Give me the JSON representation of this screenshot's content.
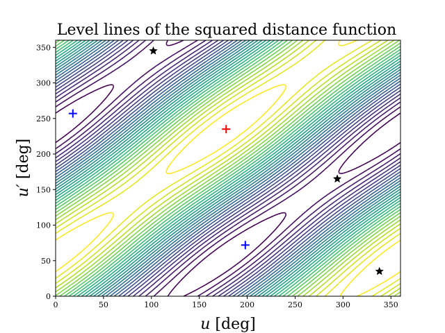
{
  "chart_data": {
    "type": "contour",
    "title": "Level lines of the squared distance function",
    "xlabel_main": "u",
    "xlabel_unit": " [deg]",
    "ylabel_main": "u′",
    "ylabel_unit": " [deg]",
    "xlim": [
      0,
      360
    ],
    "ylim": [
      0,
      360
    ],
    "xticks": [
      0,
      50,
      100,
      150,
      200,
      250,
      300,
      350
    ],
    "yticks": [
      0,
      50,
      100,
      150,
      200,
      250,
      300,
      350
    ],
    "grid": false,
    "colormap": "viridis",
    "colors": {
      "red_marker": "#ff0000",
      "blue_marker": "#0000ff",
      "black_marker": "#000000"
    },
    "markers": [
      {
        "kind": "plus",
        "color": "red",
        "x": 178,
        "y": 235
      },
      {
        "kind": "plus",
        "color": "blue",
        "x": 18,
        "y": 257
      },
      {
        "kind": "plus",
        "color": "blue",
        "x": 198,
        "y": 72
      },
      {
        "kind": "star",
        "color": "black",
        "x": 102,
        "y": 345
      },
      {
        "kind": "star",
        "color": "black",
        "x": 294,
        "y": 165
      },
      {
        "kind": "star",
        "color": "black",
        "x": 338,
        "y": 35
      }
    ]
  }
}
